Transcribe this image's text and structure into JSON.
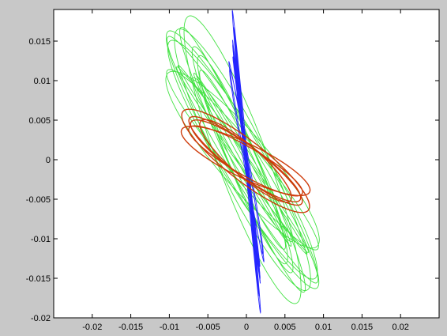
{
  "figure": {
    "background_color": "#c8c8c8",
    "axes_background_color": "#ffffff"
  },
  "chart_data": {
    "type": "line",
    "title": "",
    "xlabel": "",
    "ylabel": "",
    "xlim": [
      -0.025,
      0.025
    ],
    "ylim": [
      -0.02,
      0.019
    ],
    "grid": false,
    "legend": "none",
    "x_ticks": [
      -0.02,
      -0.015,
      -0.01,
      -0.005,
      0,
      0.005,
      0.01,
      0.015,
      0.02
    ],
    "x_tick_labels": [
      "-0.02",
      "-0.015",
      "-0.01",
      "-0.005",
      "0",
      "0.005",
      "0.01",
      "0.015",
      "0.02"
    ],
    "y_ticks": [
      0.015,
      0.01,
      0.005,
      0,
      -0.005,
      -0.01,
      -0.015,
      -0.02
    ],
    "y_tick_labels": [
      "0.015",
      "0.01",
      "0.005",
      "0",
      "-0.005",
      "-0.01",
      "-0.015",
      "-0.02"
    ],
    "series": [
      {
        "kind": "phase-portrait",
        "color": "#22dd22",
        "approx_x_range": [
          -0.0105,
          0.0095
        ],
        "approx_y_range": [
          -0.0185,
          0.0185
        ],
        "tilt": "negative slope",
        "loops": 16
      },
      {
        "kind": "phase-portrait",
        "color": "#1a1aff",
        "approx_x_range": [
          -0.0025,
          0.0025
        ],
        "approx_y_range": [
          -0.0195,
          0.019
        ],
        "tilt": "near vertical",
        "loops": 12
      },
      {
        "kind": "phase-portrait",
        "color": "#cc3300",
        "approx_x_range": [
          -0.01,
          0.0098
        ],
        "approx_y_range": [
          -0.0078,
          0.0075
        ],
        "tilt": "negative slope",
        "loops": 6
      }
    ]
  }
}
